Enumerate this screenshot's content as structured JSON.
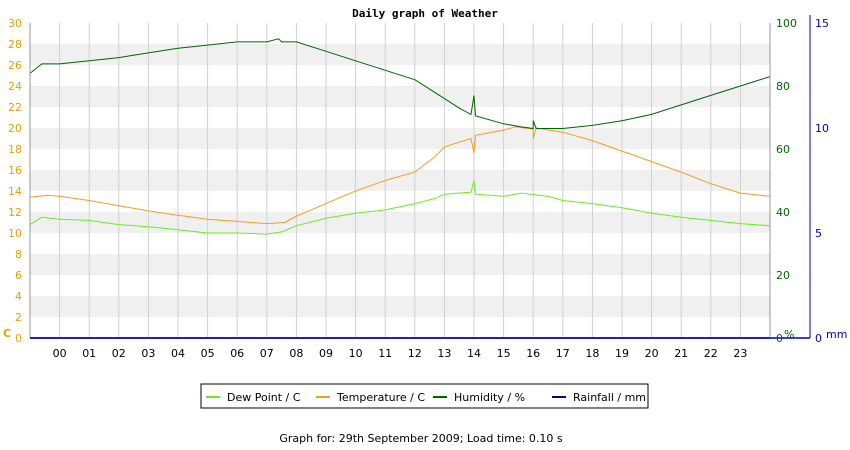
{
  "chart_data": {
    "type": "line",
    "title": "Daily graph of Weather",
    "x_tick_labels": [
      "00",
      "01",
      "02",
      "03",
      "04",
      "05",
      "06",
      "07",
      "08",
      "09",
      "10",
      "11",
      "12",
      "13",
      "14",
      "15",
      "16",
      "17",
      "18",
      "19",
      "20",
      "21",
      "22",
      "23"
    ],
    "x_range_hours": [
      -1,
      24
    ],
    "axes": {
      "left": {
        "unit": "C",
        "range": [
          0,
          30
        ],
        "ticks": [
          0,
          2,
          4,
          6,
          8,
          10,
          12,
          14,
          16,
          18,
          20,
          22,
          24,
          26,
          28,
          30
        ],
        "color": "#e8a000"
      },
      "right1": {
        "unit": "%",
        "range": [
          0,
          100
        ],
        "ticks": [
          0,
          20,
          40,
          60,
          80,
          100
        ],
        "color": "#006600"
      },
      "right2": {
        "unit": "mm",
        "range": [
          0,
          15
        ],
        "ticks": [
          0,
          5,
          10,
          15
        ],
        "color": "#0000aa"
      }
    },
    "grid": "horizontal bands",
    "legend_position": "bottom",
    "series": [
      {
        "name": "Dew Point / C",
        "axis": "left",
        "color": "#66ee22",
        "points": [
          [
            -1,
            10.8
          ],
          [
            -0.6,
            11.5
          ],
          [
            0,
            11.3
          ],
          [
            1,
            11.2
          ],
          [
            2,
            10.8
          ],
          [
            3,
            10.6
          ],
          [
            4,
            10.3
          ],
          [
            5,
            10.0
          ],
          [
            6,
            10.0
          ],
          [
            7,
            9.9
          ],
          [
            7.5,
            10.1
          ],
          [
            8,
            10.7
          ],
          [
            9,
            11.4
          ],
          [
            10,
            11.9
          ],
          [
            11,
            12.2
          ],
          [
            12,
            12.8
          ],
          [
            12.7,
            13.3
          ],
          [
            13,
            13.7
          ],
          [
            13.9,
            13.9
          ],
          [
            14,
            15.0
          ],
          [
            14.05,
            13.7
          ],
          [
            15,
            13.5
          ],
          [
            15.6,
            13.8
          ],
          [
            16.5,
            13.5
          ],
          [
            17,
            13.1
          ],
          [
            18,
            12.8
          ],
          [
            19,
            12.4
          ],
          [
            20,
            11.9
          ],
          [
            21,
            11.5
          ],
          [
            22,
            11.2
          ],
          [
            23,
            10.9
          ],
          [
            24,
            10.7
          ]
        ]
      },
      {
        "name": "Temperature / C",
        "axis": "left",
        "color": "#f0a020",
        "points": [
          [
            -1,
            13.4
          ],
          [
            -0.4,
            13.6
          ],
          [
            0,
            13.5
          ],
          [
            1,
            13.1
          ],
          [
            2,
            12.6
          ],
          [
            3,
            12.1
          ],
          [
            4,
            11.7
          ],
          [
            5,
            11.3
          ],
          [
            6,
            11.1
          ],
          [
            7,
            10.9
          ],
          [
            7.6,
            11.0
          ],
          [
            8,
            11.6
          ],
          [
            9,
            12.8
          ],
          [
            10,
            14.0
          ],
          [
            11,
            15.0
          ],
          [
            12,
            15.8
          ],
          [
            12.7,
            17.3
          ],
          [
            13,
            18.2
          ],
          [
            13.9,
            19.0
          ],
          [
            14,
            17.6
          ],
          [
            14.05,
            19.3
          ],
          [
            15,
            19.8
          ],
          [
            15.4,
            20.1
          ],
          [
            16,
            19.9
          ],
          [
            16,
            19.0
          ],
          [
            16.1,
            20.0
          ],
          [
            17,
            19.6
          ],
          [
            18,
            18.8
          ],
          [
            19,
            17.8
          ],
          [
            20,
            16.8
          ],
          [
            21,
            15.8
          ],
          [
            22,
            14.7
          ],
          [
            23,
            13.8
          ],
          [
            24,
            13.5
          ]
        ]
      },
      {
        "name": "Humidity / %",
        "axis": "right1",
        "color": "#006600",
        "points": [
          [
            -1,
            84
          ],
          [
            -0.6,
            87
          ],
          [
            0,
            87
          ],
          [
            1,
            88
          ],
          [
            2,
            89
          ],
          [
            3,
            90.5
          ],
          [
            4,
            92
          ],
          [
            5,
            93
          ],
          [
            6,
            94
          ],
          [
            7,
            94
          ],
          [
            7.4,
            95
          ],
          [
            7.5,
            94
          ],
          [
            8,
            94
          ],
          [
            9,
            91
          ],
          [
            10,
            88
          ],
          [
            11,
            85
          ],
          [
            12,
            82
          ],
          [
            12.5,
            79
          ],
          [
            13,
            76
          ],
          [
            13.5,
            73
          ],
          [
            13.9,
            71
          ],
          [
            14,
            77
          ],
          [
            14.05,
            70.5
          ],
          [
            15,
            68
          ],
          [
            15.6,
            67
          ],
          [
            16,
            66.5
          ],
          [
            16,
            69
          ],
          [
            16.1,
            66.5
          ],
          [
            17,
            66.5
          ],
          [
            18,
            67.5
          ],
          [
            19,
            69
          ],
          [
            20,
            71
          ],
          [
            21,
            74
          ],
          [
            22,
            77
          ],
          [
            23,
            80
          ],
          [
            24,
            83
          ]
        ]
      },
      {
        "name": "Rainfall / mm",
        "axis": "right2",
        "color": "#0000aa",
        "points": [
          [
            -1,
            0
          ],
          [
            24,
            0
          ]
        ]
      }
    ]
  },
  "footer_text": "Graph for: 29th September 2009; Load time: 0.10 s"
}
